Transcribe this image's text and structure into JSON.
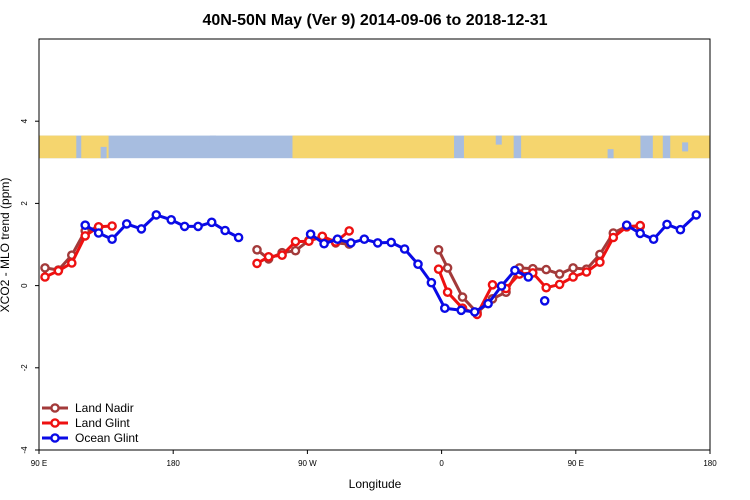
{
  "chart_data": {
    "type": "line",
    "title": "40N-50N May (Ver 9)   2014-09-06 to 2018-12-31",
    "xlabel": "Longitude",
    "ylabel": "XCO2 - MLO trend (ppm)",
    "xlim": [
      -90,
      180
    ],
    "ylim": [
      -4,
      6
    ],
    "x_ticks": [
      {
        "value": -90,
        "label": "90 E"
      },
      {
        "value": -36,
        "label": "180"
      },
      {
        "value": 18,
        "label": "90 W"
      },
      {
        "value": 72,
        "label": "0"
      },
      {
        "value": 126,
        "label": "90 E"
      },
      {
        "value": 180,
        "label": "180"
      }
    ],
    "y_ticks": [
      {
        "value": -4,
        "label": "-4"
      },
      {
        "value": -2,
        "label": "-2"
      },
      {
        "value": 0,
        "label": "0"
      },
      {
        "value": 2,
        "label": "2"
      },
      {
        "value": 4,
        "label": "4"
      }
    ],
    "map_band": {
      "ymin": 3.1,
      "ymax": 3.65,
      "land_color": "#f5d56e",
      "ocean_color": "#a7bde0"
    },
    "legend_position": "bottom-left",
    "series": [
      {
        "name": "Land Nadir",
        "color": "#a33a3a",
        "segments": [
          [
            [
              -87.6,
              0.43
            ],
            [
              -82.2,
              0.38
            ],
            [
              -76.8,
              0.74
            ],
            [
              -71.4,
              1.33
            ],
            [
              -66,
              1.42
            ]
          ],
          [
            [
              -2.3,
              0.87
            ],
            [
              2.4,
              0.65
            ],
            [
              7.8,
              0.8
            ],
            [
              13.2,
              0.85
            ],
            [
              18.6,
              1.1
            ],
            [
              24,
              1.18
            ],
            [
              29.4,
              1.04
            ],
            [
              34.8,
              1.01
            ]
          ],
          [
            [
              70.8,
              0.87
            ],
            [
              74.4,
              0.43
            ],
            [
              80.4,
              -0.28
            ],
            [
              86.3,
              -0.66
            ],
            [
              92.5,
              -0.32
            ],
            [
              97.9,
              -0.16
            ],
            [
              103.3,
              0.43
            ],
            [
              108.7,
              0.41
            ],
            [
              114.1,
              0.39
            ],
            [
              119.5,
              0.28
            ],
            [
              124.9,
              0.43
            ],
            [
              130.3,
              0.4
            ],
            [
              135.7,
              0.76
            ],
            [
              141.1,
              1.28
            ],
            [
              146.5,
              1.44
            ],
            [
              151.9,
              1.44
            ]
          ]
        ]
      },
      {
        "name": "Land Glint",
        "color": "#ee1111",
        "segments": [
          [
            [
              -87.6,
              0.21
            ],
            [
              -82.2,
              0.36
            ],
            [
              -76.8,
              0.55
            ],
            [
              -71.4,
              1.21
            ],
            [
              -66,
              1.43
            ],
            [
              -60.6,
              1.45
            ]
          ],
          [
            [
              -2.3,
              0.54
            ],
            [
              2.4,
              0.7
            ],
            [
              7.8,
              0.74
            ],
            [
              13.2,
              1.07
            ],
            [
              18.6,
              1.08
            ],
            [
              24,
              1.2
            ],
            [
              29.4,
              1.06
            ],
            [
              34.8,
              1.33
            ]
          ],
          [
            [
              70.8,
              0.4
            ],
            [
              74.4,
              -0.16
            ],
            [
              80.4,
              -0.55
            ],
            [
              86.3,
              -0.7
            ],
            [
              92.5,
              0.02
            ],
            [
              97.9,
              -0.07
            ],
            [
              103.3,
              0.28
            ],
            [
              108.7,
              0.31
            ],
            [
              114.1,
              -0.05
            ],
            [
              119.5,
              0.03
            ],
            [
              124.9,
              0.21
            ],
            [
              130.3,
              0.33
            ],
            [
              135.7,
              0.57
            ],
            [
              141.1,
              1.17
            ],
            [
              146.5,
              1.43
            ],
            [
              151.9,
              1.46
            ]
          ]
        ]
      },
      {
        "name": "Ocean Glint",
        "color": "#0a0ae6",
        "segments": [
          [
            [
              -71.4,
              1.47
            ],
            [
              -66,
              1.28
            ],
            [
              -60.6,
              1.13
            ],
            [
              -54.7,
              1.5
            ],
            [
              -48.8,
              1.38
            ],
            [
              -42.8,
              1.72
            ],
            [
              -36.8,
              1.6
            ],
            [
              -31.4,
              1.44
            ],
            [
              -26,
              1.44
            ],
            [
              -20.5,
              1.54
            ],
            [
              -15.1,
              1.34
            ],
            [
              -9.7,
              1.17
            ]
          ],
          [
            [
              19.3,
              1.25
            ],
            [
              24.7,
              1.02
            ],
            [
              30.1,
              1.13
            ],
            [
              35.5,
              1.04
            ],
            [
              40.9,
              1.13
            ],
            [
              46.3,
              1.04
            ],
            [
              51.7,
              1.05
            ],
            [
              57.1,
              0.89
            ],
            [
              62.5,
              0.52
            ],
            [
              67.9,
              0.07
            ],
            [
              73.3,
              -0.55
            ],
            [
              79.9,
              -0.6
            ],
            [
              85.3,
              -0.64
            ],
            [
              90.7,
              -0.44
            ],
            [
              96.1,
              -0.01
            ],
            [
              101.5,
              0.37
            ],
            [
              106.9,
              0.21
            ]
          ],
          [
            [
              113.5,
              -0.37
            ]
          ],
          [
            [
              146.5,
              1.47
            ],
            [
              151.9,
              1.27
            ],
            [
              157.3,
              1.13
            ],
            [
              162.7,
              1.49
            ],
            [
              168.1,
              1.36
            ],
            [
              174.5,
              1.72
            ]
          ]
        ]
      }
    ]
  }
}
